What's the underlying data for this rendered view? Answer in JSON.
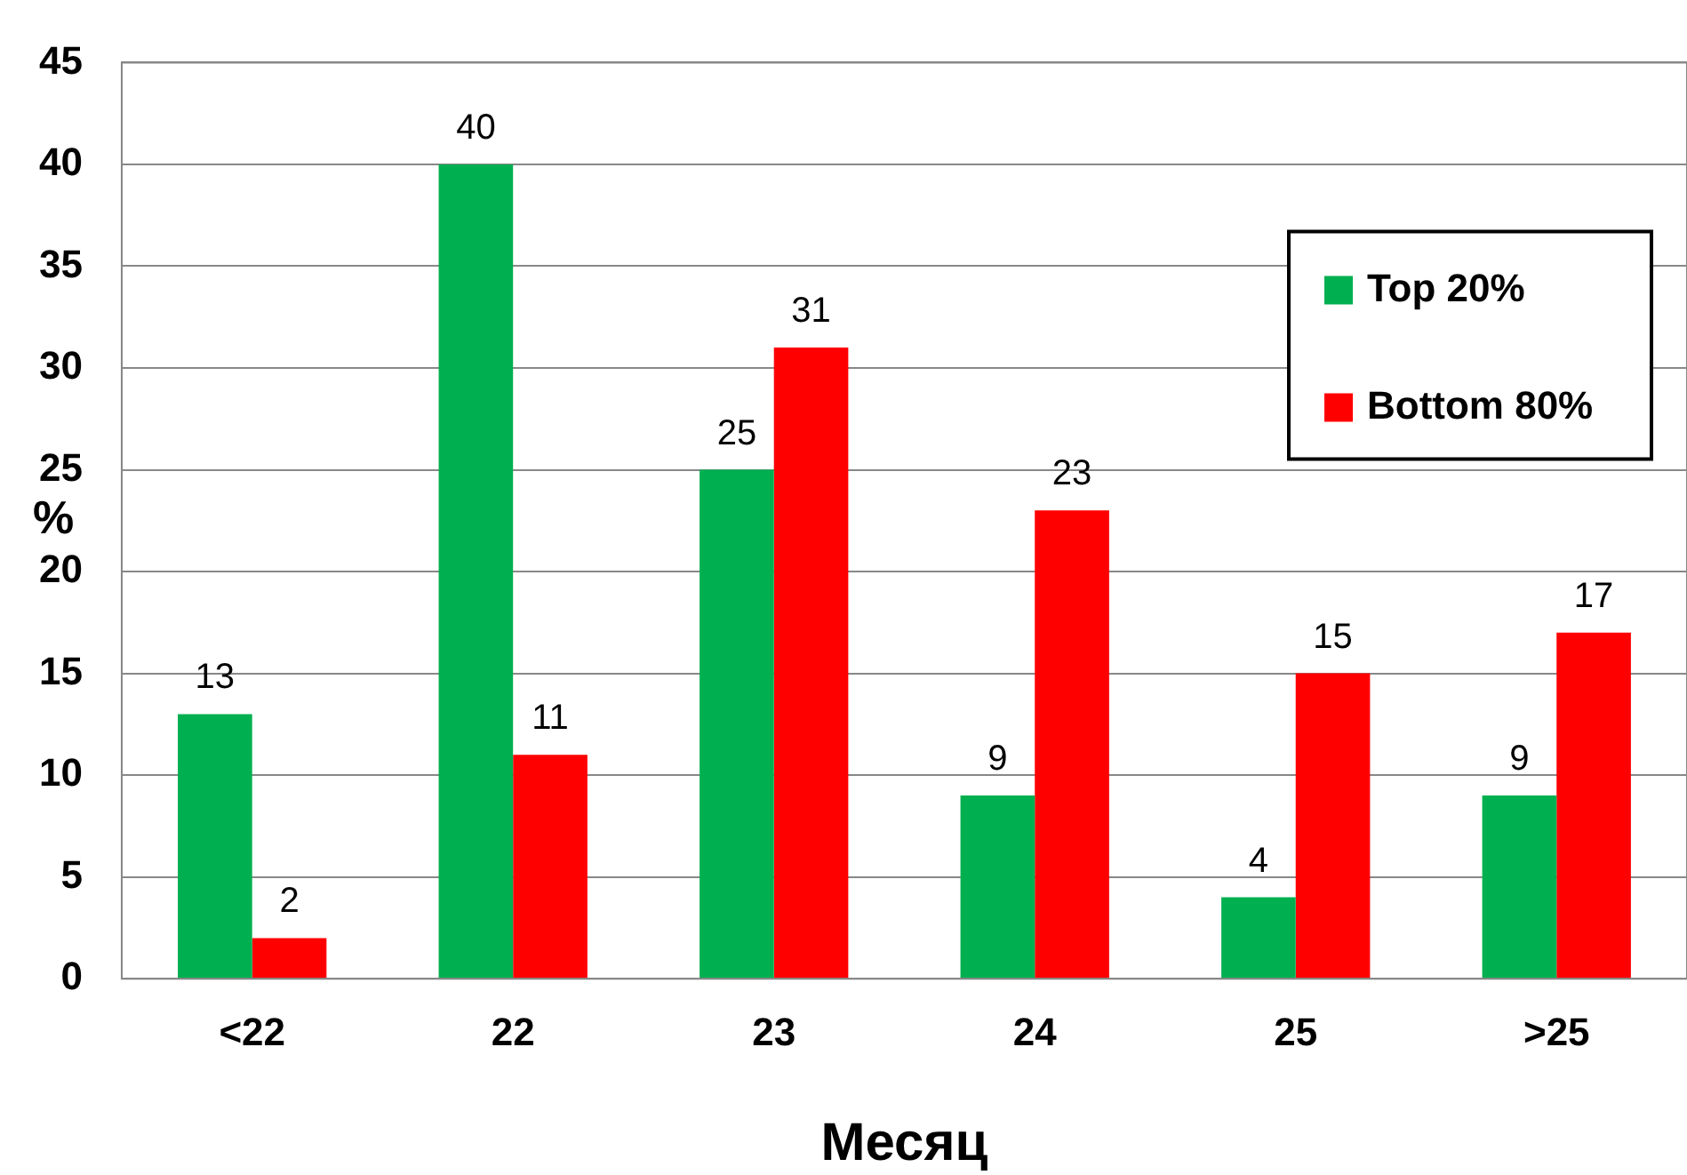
{
  "chart_data": {
    "type": "bar",
    "ylabel": "%",
    "xlabel": "Месяц",
    "categories": [
      "<22",
      "22",
      "23",
      "24",
      "25",
      ">25"
    ],
    "series": [
      {
        "name": "Top 20%",
        "color": "#00b050",
        "values": [
          13,
          40,
          25,
          9,
          4,
          9
        ]
      },
      {
        "name": "Bottom 80%",
        "color": "#ff0000",
        "values": [
          2,
          11,
          31,
          23,
          15,
          17
        ]
      }
    ],
    "ylim": [
      0,
      45
    ],
    "yticks": [
      0,
      5,
      10,
      15,
      20,
      25,
      30,
      35,
      40,
      45
    ],
    "grid": "y",
    "legend": "top right",
    "data_labels": true
  }
}
